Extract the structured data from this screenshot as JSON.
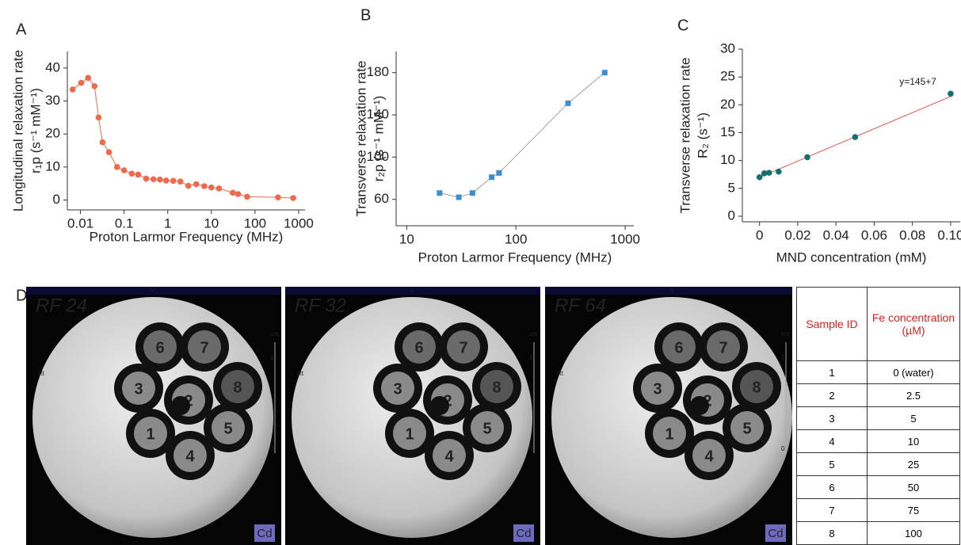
{
  "chart_data": [
    {
      "type": "scatter",
      "label": "A",
      "ylabel": [
        "Longitudinal relaxation rate",
        "r₁p (s⁻¹ mM⁻¹)"
      ],
      "xlabel": "Proton Larmor Frequency (MHz)",
      "x": [
        0.0066,
        0.0104,
        0.015,
        0.021,
        0.026,
        0.032,
        0.045,
        0.069,
        0.1,
        0.15,
        0.21,
        0.32,
        0.47,
        0.66,
        0.92,
        1.34,
        1.95,
        2.97,
        4.5,
        6.9,
        10,
        15,
        31,
        41,
        66,
        337,
        750
      ],
      "values": [
        33.5,
        35.5,
        37,
        34.5,
        25,
        17.5,
        14.5,
        10,
        9,
        8,
        7.7,
        6.5,
        6.3,
        6.2,
        5.9,
        5.8,
        5.6,
        4.3,
        4.8,
        4.2,
        3.8,
        3.5,
        2.2,
        1.8,
        1,
        0.8,
        0.6
      ],
      "color": "#ef6a4c",
      "line_color": "#ef6a4c",
      "marker": "circle",
      "xlog": true,
      "xlim": [
        0.005,
        1400
      ],
      "xticks": [
        0.01,
        0.1,
        1,
        10,
        100,
        1000
      ],
      "ylim": [
        -3,
        45
      ],
      "yticks": [
        0,
        10,
        20,
        30,
        40
      ]
    },
    {
      "type": "scatter",
      "label": "B",
      "ylabel": [
        "Transverse relaxation rate",
        "r₂p (s⁻¹ mM⁻¹)"
      ],
      "xlabel": "Proton Larmor Frequency (MHz)",
      "x": [
        20,
        30,
        40,
        60,
        70,
        300,
        650
      ],
      "values": [
        66,
        62,
        66,
        81,
        85,
        151,
        180
      ],
      "color": "#3c8fd2",
      "line_color": "#a0a0a0",
      "marker": "square",
      "xlog": true,
      "xlim": [
        8,
        1200
      ],
      "xticks": [
        10,
        100,
        1000
      ],
      "ylim": [
        35,
        200
      ],
      "yticks": [
        60,
        100,
        140,
        180
      ]
    },
    {
      "type": "scatter",
      "label": "C",
      "ylabel": [
        "Transverse relaxation rate",
        "R₂ (s⁻¹)"
      ],
      "xlabel": "MND concentration (mM)",
      "x": [
        0,
        0.0025,
        0.005,
        0.01,
        0.025,
        0.05,
        0.1
      ],
      "values": [
        7,
        7.7,
        7.8,
        8,
        10.6,
        14.2,
        22
      ],
      "color": "#16706e",
      "marker": "circle",
      "xlog": false,
      "fit": {
        "x": [
          0,
          0.1
        ],
        "values": [
          7,
          21.5
        ],
        "color": "#e07070",
        "label": "y=145+7",
        "label_color": "#d02020"
      },
      "xlim": [
        -0.009,
        0.105
      ],
      "xticks": [
        0,
        0.02,
        0.04,
        0.06,
        0.08,
        {
          "value": 0.1,
          "label": "0.10"
        }
      ],
      "ylim": [
        -1,
        30
      ],
      "yticks": [
        0,
        5,
        10,
        15,
        20,
        25,
        30
      ]
    }
  ],
  "panel_d": {
    "label": "D",
    "images": [
      {
        "title": "RF 24",
        "tubes": [
          "1",
          "2",
          "3",
          "4",
          "5",
          "6",
          "7",
          "8"
        ],
        "badge": "Cd",
        "top_mark": "V",
        "left_mark": "Rt",
        "scale_unit": "cm",
        "scale_labels": [
          "1",
          "0"
        ]
      },
      {
        "title": "RF 32",
        "tubes": [
          "1",
          "2",
          "3",
          "4",
          "5",
          "6",
          "7",
          "8"
        ],
        "badge": "Cd",
        "top_mark": "V",
        "left_mark": "Rt",
        "scale_unit": "cm",
        "scale_labels": [
          "1",
          "0"
        ]
      },
      {
        "title": "RF 64",
        "tubes": [
          "1",
          "2",
          "3",
          "4",
          "5",
          "6",
          "7",
          "8"
        ],
        "badge": "Cd",
        "top_mark": "V",
        "left_mark": "Rt",
        "scale_unit": "cm",
        "scale_labels": [
          "1",
          "0"
        ]
      }
    ],
    "table": {
      "header": [
        "Sample ID",
        "Fe concentration (µM)"
      ],
      "rows": [
        [
          "1",
          "0 (water)"
        ],
        [
          "2",
          "2.5"
        ],
        [
          "3",
          "5"
        ],
        [
          "4",
          "10"
        ],
        [
          "5",
          "25"
        ],
        [
          "6",
          "50"
        ],
        [
          "7",
          "75"
        ],
        [
          "8",
          "100"
        ]
      ]
    }
  }
}
